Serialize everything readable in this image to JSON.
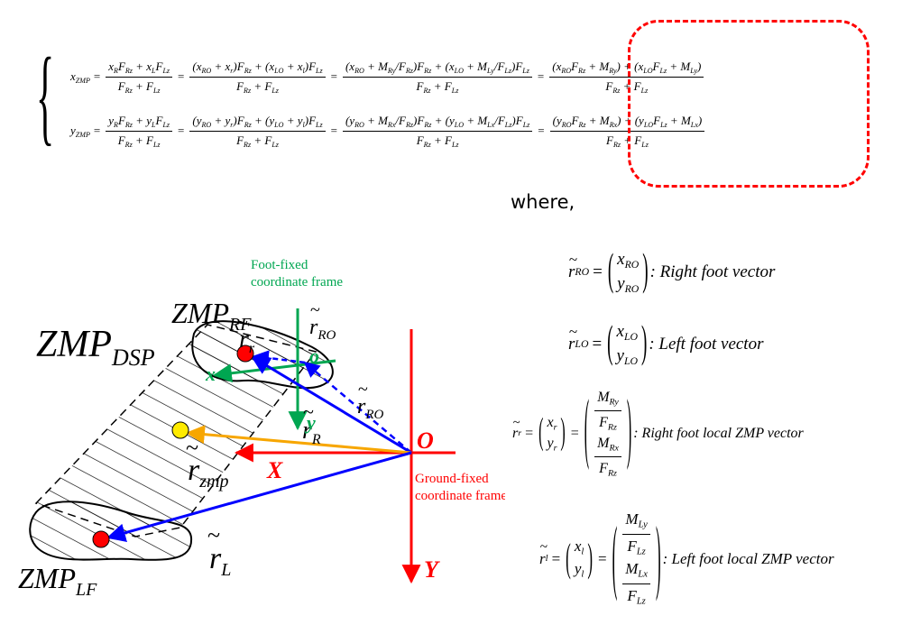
{
  "where_label": "where,",
  "frames": {
    "foot_fixed_line1": "Foot-fixed",
    "foot_fixed_line2": "coordinate frame",
    "ground_fixed_line1": "Ground-fixed",
    "ground_fixed_line2": "coordinate frame"
  },
  "axes": {
    "ground_origin": "O",
    "ground_x": "X",
    "ground_y": "Y",
    "foot_origin": "o",
    "foot_x": "x",
    "foot_y": "y"
  },
  "definitions": {
    "r_ro_desc": ": Right  foot vector",
    "r_lo_desc": ": Left  foot vector",
    "r_r_desc": ": Right foot local ZMP vector",
    "r_l_desc": ": Left  foot local ZMP vector"
  },
  "colors": {
    "red": "#ff0000",
    "green": "#00a651",
    "blue": "#0000ff",
    "orange": "#f7a600",
    "yellow": "#ffeb00",
    "dashed_box": "#ff0000"
  }
}
